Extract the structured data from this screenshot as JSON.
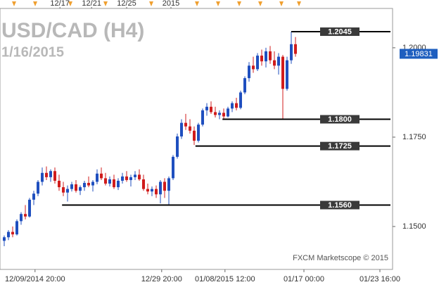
{
  "chart_data": {
    "type": "candlestick",
    "title": "USD/CAD (H4)",
    "subtitle": "1/16/2015",
    "watermark": "FXCM Marketscope © 2015",
    "up_color": "#1f4fbf",
    "down_color": "#d01c1c",
    "x": [
      1,
      2,
      3,
      4,
      5,
      6,
      7,
      8,
      9,
      10,
      11,
      12,
      13,
      14,
      15,
      16,
      17,
      18,
      19,
      20,
      21,
      22,
      23,
      24,
      25,
      26,
      27,
      28,
      29,
      30,
      31,
      32,
      33,
      34,
      35,
      36,
      37,
      38,
      39,
      40,
      41,
      42,
      43,
      44,
      45,
      46,
      47,
      48,
      49,
      50,
      51,
      52,
      53,
      54,
      55,
      56,
      57,
      58,
      59,
      60,
      61,
      62,
      63,
      64,
      65,
      66,
      67,
      68,
      69,
      70
    ],
    "open": [
      1.146,
      1.147,
      1.1485,
      1.1478,
      1.1515,
      1.1535,
      1.1528,
      1.1575,
      1.1592,
      1.1625,
      1.165,
      1.1638,
      1.1655,
      1.1628,
      1.161,
      1.1595,
      1.1605,
      1.1618,
      1.16,
      1.161,
      1.1622,
      1.1615,
      1.1625,
      1.1648,
      1.1635,
      1.162,
      1.1632,
      1.161,
      1.1628,
      1.164,
      1.163,
      1.1638,
      1.1645,
      1.1632,
      1.1605,
      1.1598,
      1.1605,
      1.159,
      1.1625,
      1.16,
      1.1635,
      1.1695,
      1.1752,
      1.179,
      1.178,
      1.1768,
      1.174,
      1.1785,
      1.1825,
      1.1835,
      1.182,
      1.1812,
      1.1818,
      1.1808,
      1.183,
      1.1845,
      1.1832,
      1.1875,
      1.1915,
      1.195,
      1.194,
      1.1978,
      1.1962,
      1.199,
      1.1965,
      1.195,
      1.1975,
      1.1885,
      1.1965,
      1.201
    ],
    "high": [
      1.1475,
      1.149,
      1.15,
      1.152,
      1.154,
      1.156,
      1.158,
      1.16,
      1.163,
      1.1665,
      1.1668,
      1.166,
      1.1665,
      1.1645,
      1.1625,
      1.1615,
      1.1625,
      1.163,
      1.1615,
      1.1628,
      1.164,
      1.163,
      1.166,
      1.1665,
      1.165,
      1.164,
      1.1645,
      1.1635,
      1.165,
      1.1655,
      1.1645,
      1.1655,
      1.166,
      1.1645,
      1.162,
      1.1612,
      1.1615,
      1.163,
      1.1635,
      1.164,
      1.17,
      1.176,
      1.18,
      1.1815,
      1.18,
      1.178,
      1.179,
      1.183,
      1.1845,
      1.185,
      1.1835,
      1.1825,
      1.183,
      1.1835,
      1.185,
      1.186,
      1.188,
      1.192,
      1.196,
      1.1975,
      1.1985,
      1.1995,
      1.2,
      1.2005,
      1.199,
      1.1985,
      1.198,
      1.1975,
      1.2045,
      1.203
    ],
    "low": [
      1.1445,
      1.1462,
      1.147,
      1.1475,
      1.1505,
      1.152,
      1.1525,
      1.156,
      1.1585,
      1.1615,
      1.163,
      1.1625,
      1.162,
      1.16,
      1.1585,
      1.157,
      1.1598,
      1.1595,
      1.1588,
      1.16,
      1.161,
      1.1598,
      1.1618,
      1.163,
      1.1615,
      1.1612,
      1.1605,
      1.1602,
      1.162,
      1.1625,
      1.1612,
      1.163,
      1.1628,
      1.16,
      1.159,
      1.1585,
      1.158,
      1.1565,
      1.158,
      1.156,
      1.163,
      1.169,
      1.1745,
      1.177,
      1.176,
      1.1728,
      1.1735,
      1.178,
      1.181,
      1.1815,
      1.1805,
      1.18,
      1.1802,
      1.1805,
      1.182,
      1.1825,
      1.1828,
      1.187,
      1.1905,
      1.193,
      1.1935,
      1.195,
      1.1945,
      1.1955,
      1.194,
      1.1925,
      1.18,
      1.188,
      1.1955,
      1.1975
    ],
    "close": [
      1.147,
      1.1485,
      1.1478,
      1.1515,
      1.1535,
      1.1528,
      1.1575,
      1.1592,
      1.1625,
      1.165,
      1.1638,
      1.1655,
      1.1628,
      1.161,
      1.1595,
      1.1605,
      1.1618,
      1.16,
      1.161,
      1.1622,
      1.1615,
      1.1625,
      1.1648,
      1.1635,
      1.162,
      1.1632,
      1.161,
      1.1628,
      1.164,
      1.163,
      1.1638,
      1.1645,
      1.1632,
      1.1605,
      1.1598,
      1.1605,
      1.159,
      1.1625,
      1.16,
      1.1635,
      1.1695,
      1.1752,
      1.179,
      1.178,
      1.1768,
      1.174,
      1.1785,
      1.1825,
      1.1835,
      1.182,
      1.1812,
      1.1818,
      1.1808,
      1.183,
      1.1845,
      1.1832,
      1.1875,
      1.1915,
      1.195,
      1.194,
      1.1978,
      1.1962,
      1.199,
      1.1965,
      1.195,
      1.1975,
      1.1885,
      1.1965,
      1.201,
      1.1983
    ],
    "levels": [
      {
        "value": 1.2045,
        "start": 69
      },
      {
        "value": 1.18,
        "label": "1.1800",
        "start": 52.7
      },
      {
        "value": 1.1725,
        "start": 46.3
      },
      {
        "value": 1.156,
        "label": "1.1560",
        "start": 14.7
      }
    ],
    "last_price": 1.19831,
    "ylim": [
      1.138,
      1.211
    ],
    "yticks": [
      {
        "value": 1.15,
        "label": "1.1500"
      },
      {
        "value": 1.175,
        "label": "1.1750"
      },
      {
        "value": 1.2,
        "label": "1.2000"
      }
    ],
    "xlim": [
      0,
      93
    ],
    "xticks": [
      {
        "value": 8.3,
        "label": "12/09/2014 20:00"
      },
      {
        "value": 38.3,
        "label": "12/29 20:00"
      },
      {
        "value": 53.3,
        "label": "01/08/2015 12:00"
      },
      {
        "value": 72,
        "label": "01/17 00:00"
      },
      {
        "value": 90,
        "label": "01/23 16:00"
      }
    ],
    "xticks_top": [
      {
        "value": 14.2,
        "label": "12/17"
      },
      {
        "value": 21.7,
        "label": "12/21"
      },
      {
        "value": 30,
        "label": "12/25"
      },
      {
        "value": 40.5,
        "label": "2015"
      }
    ]
  }
}
